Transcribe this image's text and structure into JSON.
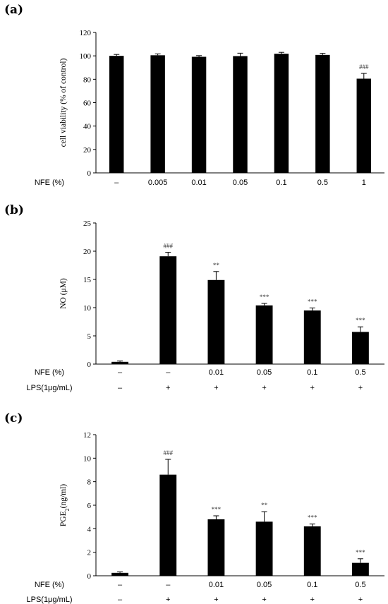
{
  "chart_data": [
    {
      "type": "bar",
      "panel": "(a)",
      "ylabel": "cell viability (% of control)",
      "ylim": [
        0,
        120
      ],
      "yticks": [
        0,
        20,
        40,
        60,
        80,
        100,
        120
      ],
      "rows": [
        {
          "label": "NFE (%)",
          "values": [
            "–",
            "0.005",
            "0.01",
            "0.05",
            "0.1",
            "0.5",
            "1"
          ]
        }
      ],
      "values": [
        100,
        100.5,
        99.2,
        99.8,
        101.8,
        100.8,
        80.5
      ],
      "errors": [
        1.2,
        1.2,
        1.0,
        2.5,
        1.2,
        1.3,
        4.5
      ],
      "annotations": [
        "",
        "",
        "",
        "",
        "",
        "",
        "###"
      ]
    },
    {
      "type": "bar",
      "panel": "(b)",
      "ylabel": "NO (μM)",
      "ylim": [
        0,
        25
      ],
      "yticks": [
        0,
        5,
        10,
        15,
        20,
        25
      ],
      "rows": [
        {
          "label": "NFE (%)",
          "values": [
            "–",
            "–",
            "0.01",
            "0.05",
            "0.1",
            "0.5"
          ]
        },
        {
          "label": "LPS(1μg/mL)",
          "values": [
            "–",
            "+",
            "+",
            "+",
            "+",
            "+"
          ]
        }
      ],
      "values": [
        0.4,
        19.1,
        14.9,
        10.4,
        9.5,
        5.7
      ],
      "errors": [
        0.15,
        0.7,
        1.5,
        0.35,
        0.45,
        0.9
      ],
      "annotations": [
        "",
        "###",
        "**",
        "***",
        "***",
        "***"
      ]
    },
    {
      "type": "bar",
      "panel": "(c)",
      "ylabel": "PGE2(ng/ml)",
      "ylim": [
        0,
        12
      ],
      "yticks": [
        0,
        2,
        4,
        6,
        8,
        10,
        12
      ],
      "rows": [
        {
          "label": "NFE (%)",
          "values": [
            "–",
            "–",
            "0.01",
            "0.05",
            "0.1",
            "0.5"
          ]
        },
        {
          "label": "LPS(1μg/mL)",
          "values": [
            "–",
            "+",
            "+",
            "+",
            "+",
            "+"
          ]
        }
      ],
      "values": [
        0.25,
        8.6,
        4.8,
        4.6,
        4.2,
        1.1
      ],
      "errors": [
        0.08,
        1.3,
        0.3,
        0.85,
        0.2,
        0.35
      ],
      "annotations": [
        "",
        "###",
        "***",
        "**",
        "***",
        "***"
      ]
    }
  ]
}
